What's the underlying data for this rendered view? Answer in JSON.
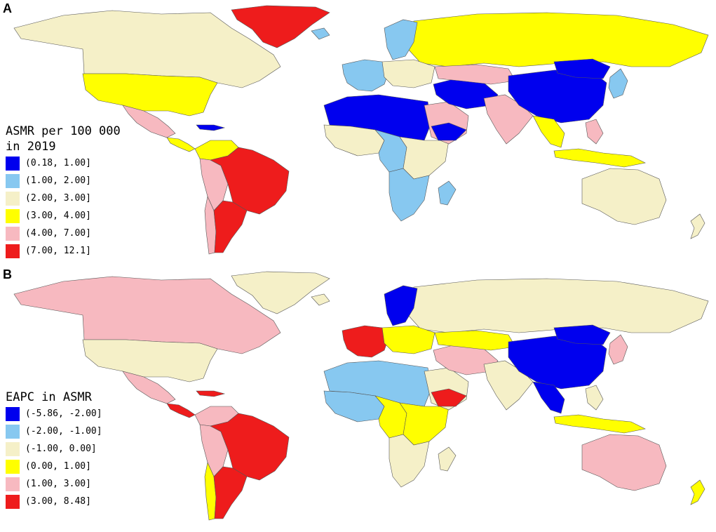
{
  "panels": [
    {
      "letter": "A",
      "legend": {
        "title_line1": "ASMR per 100 000",
        "title_line2": "in 2019",
        "items": [
          {
            "label": "(0.18, 1.00]",
            "color": "#0000ee"
          },
          {
            "label": "(1.00, 2.00]",
            "color": "#87c8f0"
          },
          {
            "label": "(2.00, 3.00]",
            "color": "#f5f0c8"
          },
          {
            "label": "(3.00, 4.00]",
            "color": "#ffff00"
          },
          {
            "label": "(4.00, 7.00]",
            "color": "#f7b9c0"
          },
          {
            "label": "(7.00, 12.1]",
            "color": "#ee1c1c"
          }
        ]
      },
      "regions": {
        "greenland": "#ee1c1c",
        "canada": "#f5f0c8",
        "usa": "#ffff00",
        "mexico": "#f7b9c0",
        "central_america": "#ffff00",
        "caribbean": "#0000ee",
        "south_america_north": "#ffff00",
        "brazil": "#ee1c1c",
        "peru_bolivia": "#f7b9c0",
        "chile": "#f7b9c0",
        "argentina": "#ee1c1c",
        "russia": "#ffff00",
        "scandinavia": "#87c8f0",
        "western_europe": "#87c8f0",
        "eastern_europe": "#f5f0c8",
        "north_africa": "#0000ee",
        "west_africa": "#f5f0c8",
        "central_africa": "#87c8f0",
        "east_africa": "#f5f0c8",
        "southern_africa": "#87c8f0",
        "madagascar": "#87c8f0",
        "arabia": "#f7b9c0",
        "yemen": "#0000ee",
        "iran_afghan": "#0000ee",
        "kazakhstan": "#f7b9c0",
        "india": "#f7b9c0",
        "china": "#0000ee",
        "mongolia": "#0000ee",
        "japan_korea": "#87c8f0",
        "southeast_asia": "#ffff00",
        "indonesia": "#ffff00",
        "philippines": "#f7b9c0",
        "australia": "#f5f0c8",
        "new_zealand": "#f5f0c8",
        "iceland": "#87c8f0"
      }
    },
    {
      "letter": "B",
      "legend": {
        "title_line1": "EAPC in ASMR",
        "title_line2": "",
        "items": [
          {
            "label": "(-5.86, -2.00]",
            "color": "#0000ee"
          },
          {
            "label": "(-2.00, -1.00]",
            "color": "#87c8f0"
          },
          {
            "label": "(-1.00, 0.00]",
            "color": "#f5f0c8"
          },
          {
            "label": "(0.00, 1.00]",
            "color": "#ffff00"
          },
          {
            "label": "(1.00, 3.00]",
            "color": "#f7b9c0"
          },
          {
            "label": "(3.00, 8.48]",
            "color": "#ee1c1c"
          }
        ]
      },
      "regions": {
        "greenland": "#f5f0c8",
        "canada": "#f7b9c0",
        "usa": "#f5f0c8",
        "mexico": "#f7b9c0",
        "central_america": "#ee1c1c",
        "caribbean": "#ee1c1c",
        "south_america_north": "#f7b9c0",
        "brazil": "#ee1c1c",
        "peru_bolivia": "#f7b9c0",
        "chile": "#ffff00",
        "argentina": "#ee1c1c",
        "russia": "#f5f0c8",
        "scandinavia": "#0000ee",
        "western_europe": "#ee1c1c",
        "eastern_europe": "#ffff00",
        "north_africa": "#87c8f0",
        "west_africa": "#87c8f0",
        "central_africa": "#ffff00",
        "east_africa": "#ffff00",
        "southern_africa": "#f5f0c8",
        "madagascar": "#f5f0c8",
        "arabia": "#f5f0c8",
        "yemen": "#ee1c1c",
        "iran_afghan": "#f7b9c0",
        "kazakhstan": "#ffff00",
        "india": "#f5f0c8",
        "china": "#0000ee",
        "mongolia": "#0000ee",
        "japan_korea": "#f7b9c0",
        "southeast_asia": "#0000ee",
        "indonesia": "#ffff00",
        "philippines": "#f5f0c8",
        "australia": "#f7b9c0",
        "new_zealand": "#ffff00",
        "iceland": "#f5f0c8"
      }
    }
  ]
}
